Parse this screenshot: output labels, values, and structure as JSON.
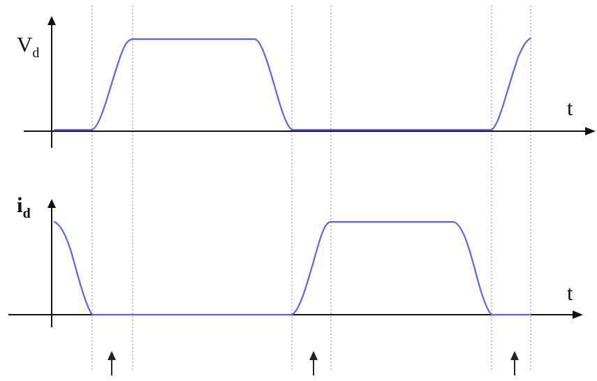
{
  "top_plot": {
    "y_label_main": "V",
    "y_label_sub": "d",
    "x_label": "t"
  },
  "bottom_plot": {
    "y_label_main": "i",
    "y_label_sub": "d",
    "x_label": "t"
  },
  "colors": {
    "signal": "#5b63e6",
    "axis": "#111111",
    "guides": "#9a9a9a"
  }
}
